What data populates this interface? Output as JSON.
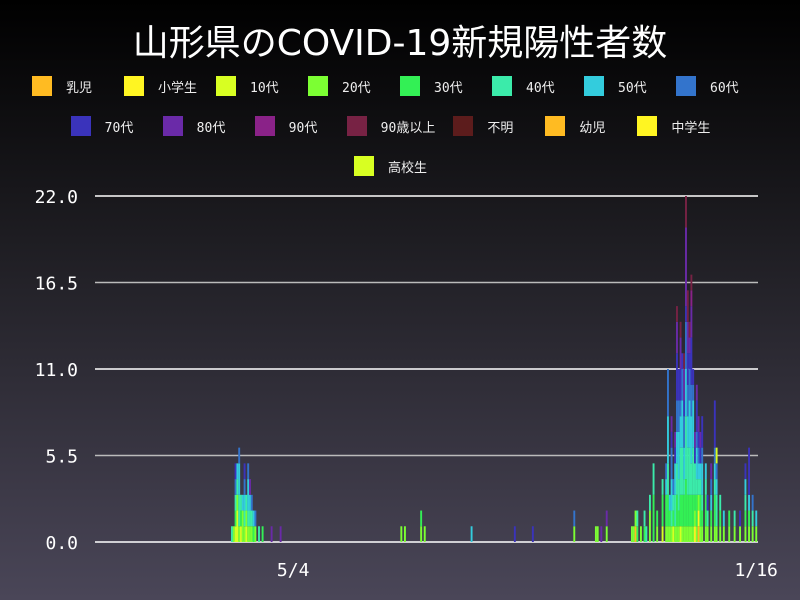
{
  "chart_data": {
    "type": "bar",
    "stacked": true,
    "title": "山形県のCOVID-19新規陽性者数",
    "ylim": [
      0,
      22
    ],
    "yticks": [
      "0.0",
      "5.5",
      "11.0",
      "16.5",
      "22.0"
    ],
    "xticks": [
      {
        "date": "2020-05-04",
        "label": "5/4"
      },
      {
        "date": "2021-01-16",
        "label": "1/16"
      }
    ],
    "xrange": [
      "2020-01-15",
      "2021-01-17"
    ],
    "grid": true,
    "legend": "top",
    "series": [
      {
        "name": "乳児",
        "color": "#ffbb22"
      },
      {
        "name": "小学生",
        "color": "#fff522"
      },
      {
        "name": "10代",
        "color": "#d8ff22"
      },
      {
        "name": "20代",
        "color": "#7cff33"
      },
      {
        "name": "30代",
        "color": "#33f055"
      },
      {
        "name": "40代",
        "color": "#3bebaa"
      },
      {
        "name": "50代",
        "color": "#33ccdd"
      },
      {
        "name": "60代",
        "color": "#3374cc"
      },
      {
        "name": "70代",
        "color": "#3a33bb"
      },
      {
        "name": "80代",
        "color": "#6a2aa8"
      },
      {
        "name": "90代",
        "color": "#8a2288"
      },
      {
        "name": "90歳以上",
        "color": "#772244"
      },
      {
        "name": "不明",
        "color": "#5c1c1c"
      },
      {
        "name": "幼児",
        "color": "#ffbb22"
      },
      {
        "name": "中学生",
        "color": "#fff522"
      },
      {
        "name": "高校生",
        "color": "#d8ff22"
      }
    ],
    "days": [
      [
        "2020-03-31",
        {
          "40代": 1
        }
      ],
      [
        "2020-04-01",
        {
          "20代": 1
        }
      ],
      [
        "2020-04-02",
        {
          "10代": 1,
          "30代": 1,
          "40代": 1,
          "60代": 1,
          "70代": 1
        }
      ],
      [
        "2020-04-03",
        {
          "10代": 2,
          "20代": 1,
          "40代": 1,
          "50代": 1
        }
      ],
      [
        "2020-04-04",
        {
          "20代": 1,
          "40代": 2,
          "50代": 2,
          "60代": 1
        }
      ],
      [
        "2020-04-05",
        {
          "10代": 1,
          "30代": 1,
          "40代": 1
        }
      ],
      [
        "2020-04-06",
        {
          "20代": 2,
          "50代": 1
        }
      ],
      [
        "2020-04-07",
        {
          "20代": 1,
          "40代": 1,
          "50代": 1,
          "60代": 1,
          "70代": 1
        }
      ],
      [
        "2020-04-08",
        {
          "10代": 1,
          "20代": 1,
          "40代": 1
        }
      ],
      [
        "2020-04-09",
        {
          "20代": 1,
          "40代": 1,
          "50代": 2,
          "60代": 1
        }
      ],
      [
        "2020-04-10",
        {
          "20代": 1,
          "40代": 1,
          "50代": 1,
          "80代": 1
        }
      ],
      [
        "2020-04-11",
        {
          "20代": 1,
          "40代": 1,
          "60代": 1
        }
      ],
      [
        "2020-04-12",
        {
          "30代": 1,
          "50代": 1
        }
      ],
      [
        "2020-04-13",
        {
          "20代": 1,
          "60代": 1
        }
      ],
      [
        "2020-04-15",
        {
          "40代": 1
        }
      ],
      [
        "2020-04-17",
        {
          "30代": 1
        }
      ],
      [
        "2020-04-22",
        {
          "80代": 1
        }
      ],
      [
        "2020-04-27",
        {
          "80代": 1
        }
      ],
      [
        "2020-07-03",
        {
          "20代": 1
        }
      ],
      [
        "2020-07-05",
        {
          "20代": 1
        }
      ],
      [
        "2020-07-14",
        {
          "20代": 1,
          "30代": 1
        }
      ],
      [
        "2020-07-16",
        {
          "20代": 1
        }
      ],
      [
        "2020-08-11",
        {
          "50代": 1
        }
      ],
      [
        "2020-09-04",
        {
          "70代": 1
        }
      ],
      [
        "2020-09-14",
        {
          "70代": 1
        }
      ],
      [
        "2020-10-07",
        {
          "20代": 1,
          "60代": 1
        }
      ],
      [
        "2020-10-19",
        {
          "20代": 1
        }
      ],
      [
        "2020-10-20",
        {
          "20代": 1
        }
      ],
      [
        "2020-10-22",
        {
          "80代": 1
        }
      ],
      [
        "2020-10-25",
        {
          "20代": 1,
          "80代": 1
        }
      ],
      [
        "2020-11-08",
        {
          "20代": 1
        }
      ],
      [
        "2020-11-09",
        {
          "20代": 1
        }
      ],
      [
        "2020-11-10",
        {
          "乳児": 1,
          "20代": 1
        }
      ],
      [
        "2020-11-11",
        {
          "30代": 1,
          "40代": 1
        }
      ],
      [
        "2020-11-13",
        {
          "20代": 1
        }
      ],
      [
        "2020-11-15",
        {
          "30代": 1,
          "40代": 1
        }
      ],
      [
        "2020-11-16",
        {
          "40代": 1
        }
      ],
      [
        "2020-11-18",
        {
          "20代": 2,
          "40代": 1
        }
      ],
      [
        "2020-11-20",
        {
          "30代": 3,
          "40代": 2
        }
      ],
      [
        "2020-11-22",
        {
          "20代": 1,
          "30代": 1
        }
      ],
      [
        "2020-11-25",
        {
          "10代": 1,
          "30代": 2,
          "40代": 1
        }
      ],
      [
        "2020-11-27",
        {
          "20代": 1,
          "30代": 2,
          "50代": 1,
          "60代": 1
        }
      ],
      [
        "2020-11-28",
        {
          "20代": 1,
          "30代": 2,
          "40代": 2,
          "50代": 3,
          "60代": 3
        }
      ],
      [
        "2020-11-29",
        {
          "20代": 1,
          "30代": 1,
          "50代": 1
        }
      ],
      [
        "2020-11-30",
        {
          "20代": 1,
          "40代": 1,
          "50代": 2,
          "60代": 2,
          "70代": 1,
          "80代": 1
        }
      ],
      [
        "2020-12-01",
        {
          "10代": 1,
          "30代": 1,
          "40代": 1,
          "60代": 1
        }
      ],
      [
        "2020-12-02",
        {
          "20代": 1,
          "40代": 2,
          "50代": 2,
          "70代": 1,
          "80代": 1
        }
      ],
      [
        "2020-12-03",
        {
          "20代": 1,
          "30代": 2,
          "40代": 2,
          "50代": 2,
          "60代": 2,
          "70代": 3,
          "80代": 2,
          "90歳以上": 1
        }
      ],
      [
        "2020-12-04",
        {
          "20代": 1,
          "30代": 1,
          "40代": 2,
          "50代": 3,
          "60代": 2,
          "70代": 2
        }
      ],
      [
        "2020-12-05",
        {
          "10代": 1,
          "30代": 2,
          "40代": 3,
          "50代": 2,
          "60代": 1,
          "70代": 2,
          "80代": 2,
          "90歳以上": 1
        }
      ],
      [
        "2020-12-06",
        {
          "20代": 1,
          "30代": 2,
          "40代": 3,
          "50代": 3,
          "60代": 2,
          "70代": 1
        }
      ],
      [
        "2020-12-07",
        {
          "20代": 1,
          "30代": 2,
          "40代": 1,
          "50代": 2,
          "60代": 2,
          "70代": 1,
          "80代": 2,
          "90歳以上": 1
        }
      ],
      [
        "2020-12-08",
        {
          "20代": 1,
          "30代": 3,
          "40代": 4,
          "50代": 3,
          "60代": 3,
          "70代": 1,
          "80代": 5,
          "90歳以上": 2
        }
      ],
      [
        "2020-12-09",
        {
          "20代": 1,
          "30代": 2,
          "40代": 3,
          "50代": 2,
          "60代": 2,
          "70代": 2,
          "80代": 2,
          "90歳以上": 2
        }
      ],
      [
        "2020-12-10",
        {
          "20代": 1,
          "30代": 2,
          "40代": 3,
          "50代": 3,
          "60代": 2,
          "70代": 1,
          "80代": 1,
          "90歳以上": 1
        }
      ],
      [
        "2020-12-11",
        {
          "20代": 1,
          "30代": 2,
          "40代": 2,
          "50代": 3,
          "60代": 2,
          "70代": 3,
          "80代": 2,
          "90代": 1,
          "90歳以上": 1
        }
      ],
      [
        "2020-12-12",
        {
          "20代": 1,
          "30代": 2,
          "40代": 3,
          "50代": 3,
          "60代": 1,
          "70代": 1
        }
      ],
      [
        "2020-12-13",
        {
          "小学生": 1,
          "20代": 1,
          "30代": 1,
          "40代": 2,
          "70代": 1,
          "80代": 1
        }
      ],
      [
        "2020-12-14",
        {
          "20代": 1,
          "30代": 2,
          "40代": 1,
          "50代": 2,
          "60代": 1,
          "70代": 2,
          "80代": 1
        }
      ],
      [
        "2020-12-15",
        {
          "乳児": 1,
          "小学生": 1,
          "20代": 1,
          "40代": 1,
          "50代": 1,
          "60代": 1,
          "70代": 1,
          "80代": 1
        }
      ],
      [
        "2020-12-16",
        {
          "20代": 1,
          "30代": 2,
          "40代": 1,
          "50代": 1,
          "70代": 1,
          "80代": 1
        }
      ],
      [
        "2020-12-17",
        {
          "20代": 1,
          "30代": 1,
          "40代": 1,
          "50代": 2,
          "60代": 1,
          "70代": 2
        }
      ],
      [
        "2020-12-19",
        {
          "20代": 1,
          "30代": 2,
          "40代": 1,
          "50代": 1
        }
      ],
      [
        "2020-12-20",
        {
          "20代": 1,
          "40代": 1,
          "70代": 1
        }
      ],
      [
        "2020-12-22",
        {
          "20代": 1,
          "30代": 1,
          "50代": 1,
          "60代": 1,
          "80代": 1
        }
      ],
      [
        "2020-12-24",
        {
          "20代": 1,
          "30代": 2,
          "40代": 1,
          "50代": 1,
          "60代": 1,
          "70代": 3
        }
      ],
      [
        "2020-12-25",
        {
          "20代": 1,
          "40代": 2,
          "50代": 1,
          "60代": 1,
          "高校生": 1
        }
      ],
      [
        "2020-12-27",
        {
          "20代": 1,
          "30代": 1,
          "40代": 1
        }
      ],
      [
        "2020-12-29",
        {
          "20代": 1,
          "50代": 1
        }
      ],
      [
        "2021-01-01",
        {
          "20代": 1,
          "30代": 1
        }
      ],
      [
        "2021-01-04",
        {
          "20代": 1,
          "40代": 1
        }
      ],
      [
        "2021-01-07",
        {
          "20代": 1,
          "70代": 1
        }
      ],
      [
        "2021-01-10",
        {
          "20代": 1,
          "30代": 1,
          "40代": 1,
          "50代": 1,
          "70代": 1
        }
      ],
      [
        "2021-01-12",
        {
          "20代": 1,
          "30代": 1,
          "50代": 1,
          "70代": 3
        }
      ],
      [
        "2021-01-14",
        {
          "20代": 1,
          "40代": 1,
          "60代": 1
        }
      ],
      [
        "2021-01-16",
        {
          "20代": 1,
          "50代": 1
        }
      ]
    ]
  }
}
